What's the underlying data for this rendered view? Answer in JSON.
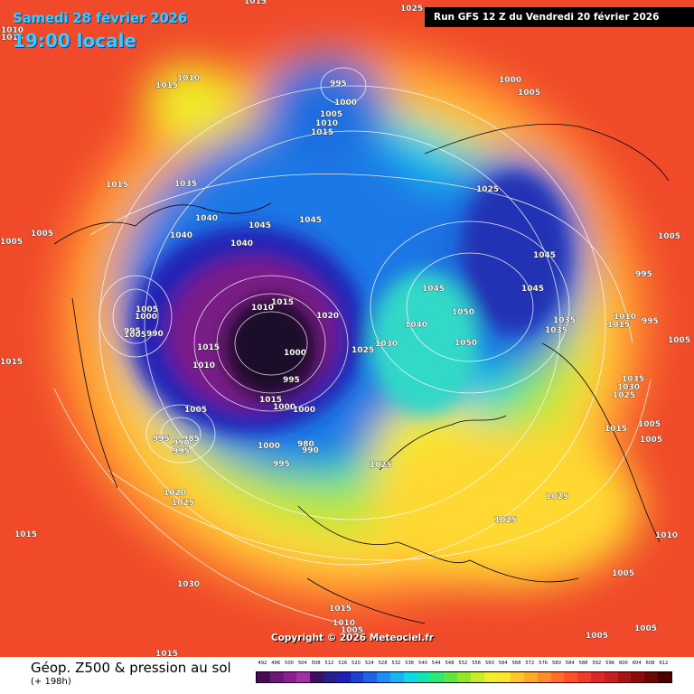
{
  "header": {
    "date_text": "Samedi 28 février 2026",
    "time_text": "19:00 locale",
    "run_text": "Run GFS 12 Z du Vendredi 20 février 2026"
  },
  "map": {
    "copyright": "Copyright © 2026 Meteociel.fr",
    "isobar_labels": [
      "1015",
      "1015",
      "1025",
      "1010",
      "1010",
      "1015",
      "995",
      "1000",
      "1005",
      "1010",
      "1015",
      "1000",
      "1005",
      "1015",
      "1035",
      "1040",
      "1045",
      "1045",
      "1040",
      "1040",
      "1005",
      "1025",
      "1045",
      "1045",
      "1045",
      "1050",
      "1050",
      "1035",
      "1035",
      "1040",
      "1030",
      "1025",
      "1020",
      "1015",
      "1010",
      "1000",
      "995",
      "1005",
      "1000",
      "1005",
      "1015",
      "990",
      "995",
      "1015",
      "1010",
      "1015",
      "1005",
      "1000",
      "1000",
      "985",
      "990",
      "995",
      "995",
      "1000",
      "980",
      "990",
      "995",
      "1025",
      "1020",
      "1025",
      "1015",
      "1030",
      "1025",
      "1025",
      "995",
      "1010",
      "1015",
      "995",
      "1005",
      "1005",
      "1005",
      "1035",
      "1030",
      "1025",
      "1015",
      "1005",
      "1005",
      "1010",
      "1005",
      "1005",
      "1015",
      "1010",
      "1005",
      "1015",
      "1005"
    ],
    "dominant_features": {
      "high_pressure": "1050",
      "low_pressure": "980"
    }
  },
  "footer": {
    "param_title": "Géop. Z500 & pression au sol",
    "lead_time": "(+ 198h)"
  },
  "legend": {
    "values": [
      "492",
      "496",
      "500",
      "504",
      "508",
      "512",
      "516",
      "520",
      "524",
      "528",
      "532",
      "536",
      "540",
      "544",
      "548",
      "552",
      "556",
      "560",
      "564",
      "568",
      "572",
      "576",
      "580",
      "584",
      "588",
      "592",
      "596",
      "600",
      "604",
      "608",
      "612"
    ],
    "colors": [
      "#4b0a55",
      "#6b1a7a",
      "#8a2090",
      "#a032a8",
      "#3a1060",
      "#28208a",
      "#2020b4",
      "#1e40d0",
      "#1e64e6",
      "#1e8cf0",
      "#18b4f0",
      "#10d8e6",
      "#10e6b4",
      "#30e678",
      "#60e640",
      "#96e628",
      "#c8ec28",
      "#f0f028",
      "#ffe628",
      "#ffc828",
      "#ffaa28",
      "#ff8c28",
      "#ff6e28",
      "#ff5028",
      "#f03c28",
      "#dc2828",
      "#c81e1e",
      "#aa1414",
      "#8c0a0a",
      "#6e0505",
      "#4a0000"
    ]
  }
}
